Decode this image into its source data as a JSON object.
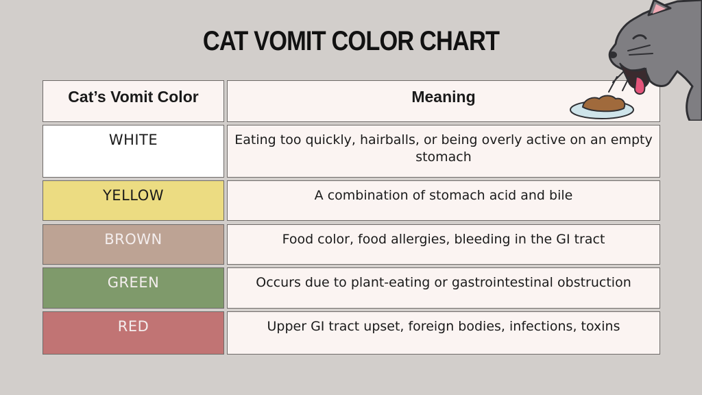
{
  "title": "CAT VOMIT COLOR CHART",
  "table": {
    "headers": [
      "Cat’s Vomit Color",
      "Meaning"
    ],
    "rows": [
      {
        "color": "WHITE",
        "meaning": "Eating too quickly, hairballs, or being overly active on an empty stomach",
        "bg": "#ffffff",
        "text_color": "#1a1a1a"
      },
      {
        "color": "YELLOW",
        "meaning": "A combination of stomach acid and bile",
        "bg": "#ecdc82",
        "text_color": "#1a1a1a"
      },
      {
        "color": "BROWN",
        "meaning": "Food color, food allergies, bleeding in the GI tract",
        "bg": "#bda394",
        "text_color": "#f4eeee"
      },
      {
        "color": "GREEN",
        "meaning": "Occurs due to plant-eating or gastrointestinal obstruction",
        "bg": "#7f9a6b",
        "text_color": "#f4eeee"
      },
      {
        "color": "RED",
        "meaning": "Upper GI tract upset, foreign bodies, infections, toxins",
        "bg": "#c17474",
        "text_color": "#f4eeee"
      }
    ]
  },
  "illustration": {
    "icon": "vomiting-cat-icon"
  }
}
